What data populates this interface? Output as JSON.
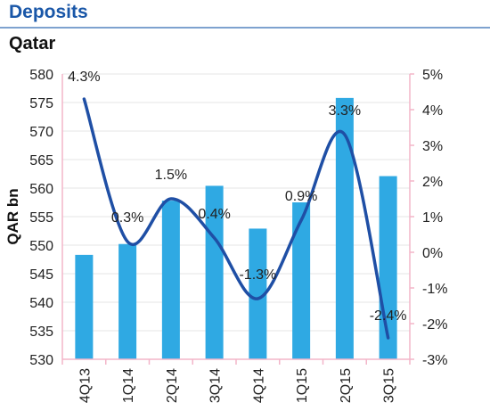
{
  "header": {
    "title": "Deposits"
  },
  "subtitle": "Qatar",
  "colors": {
    "bar": "#2fa9e3",
    "line": "#1f4fa5",
    "axis": "#f3b5c9",
    "grid": "#e6e6e6",
    "title": "#1a57a8"
  },
  "chart_data": {
    "type": "bar",
    "title": "Qatar",
    "xlabel": "",
    "ylabel": "QAR bn",
    "categories": [
      "4Q13",
      "1Q14",
      "2Q14",
      "3Q14",
      "4Q14",
      "1Q15",
      "2Q15",
      "3Q15"
    ],
    "series": [
      {
        "type": "bar",
        "axis": "left",
        "values": [
          548.3,
          550.2,
          557.8,
          560.4,
          552.9,
          557.5,
          575.8,
          562.1
        ]
      },
      {
        "type": "line",
        "axis": "right",
        "values": [
          4.3,
          0.3,
          1.5,
          0.4,
          -1.3,
          0.9,
          3.3,
          -2.4
        ],
        "data_labels": [
          "4.3%",
          "0.3%",
          "1.5%",
          "0.4%",
          "-1.3%",
          "0.9%",
          "3.3%",
          "-2.4%"
        ]
      }
    ],
    "y_left": {
      "range": [
        530,
        580
      ],
      "step": 5,
      "ticks": [
        "530",
        "535",
        "540",
        "545",
        "550",
        "555",
        "560",
        "565",
        "570",
        "575",
        "580"
      ]
    },
    "y_right": {
      "range": [
        -3,
        5
      ],
      "step": 1,
      "ticks": [
        "-3%",
        "-2%",
        "-1%",
        "0%",
        "1%",
        "2%",
        "3%",
        "4%",
        "5%"
      ]
    },
    "grid": true,
    "legend": "none"
  }
}
